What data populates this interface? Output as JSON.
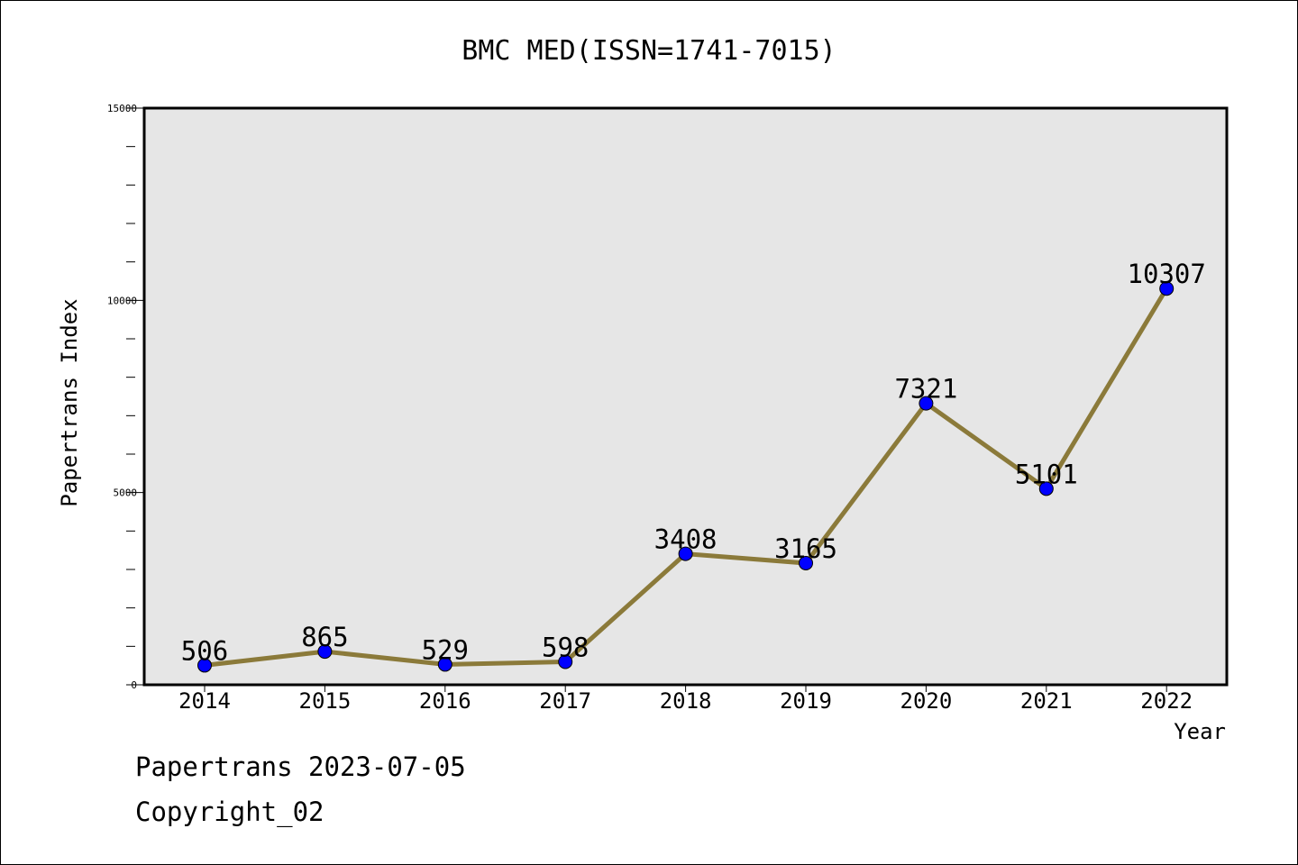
{
  "chart_data": {
    "type": "line",
    "title": "BMC MED(ISSN=1741-7015)",
    "xlabel": "Year",
    "ylabel": "Papertrans Index",
    "categories": [
      "2014",
      "2015",
      "2016",
      "2017",
      "2018",
      "2019",
      "2020",
      "2021",
      "2022"
    ],
    "series": [
      {
        "values": [
          506,
          865,
          529,
          598,
          3408,
          3165,
          7321,
          5101,
          10307
        ]
      }
    ],
    "ylim": [
      0,
      15000
    ],
    "yticks": [
      0,
      5000,
      10000,
      15000
    ],
    "ytick_labels": [
      "0",
      "5000",
      "10000",
      "15000"
    ],
    "data_labels": [
      "506",
      "865",
      "529",
      "598",
      "3408",
      "3165",
      "7321",
      "5101",
      "10307"
    ],
    "grid": false,
    "colors": {
      "line": "#8b7a3a",
      "marker": "#0000ff",
      "plot_bg": "#e6e6e6"
    }
  },
  "footer": {
    "line1": "Papertrans 2023-07-05",
    "line2": "Copyright_02"
  }
}
